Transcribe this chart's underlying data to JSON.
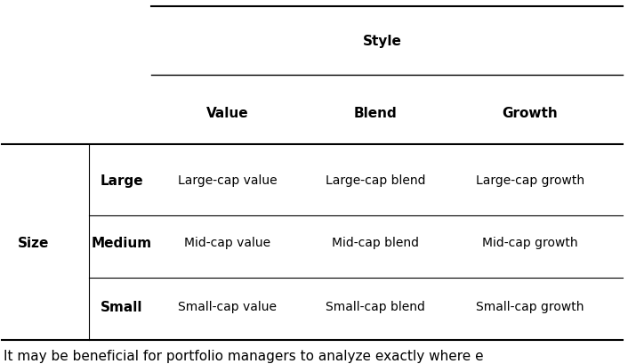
{
  "title": "Style",
  "col_headers": [
    "Value",
    "Blend",
    "Growth"
  ],
  "row_headers": [
    "Large",
    "Medium",
    "Small"
  ],
  "cells": [
    [
      "Large-cap value",
      "Large-cap blend",
      "Large-cap growth"
    ],
    [
      "Mid-cap value",
      "Mid-cap blend",
      "Mid-cap growth"
    ],
    [
      "Small-cap value",
      "Small-cap blend",
      "Small-cap growth"
    ]
  ],
  "size_label": "Size",
  "footer_text": "It may be beneficial for portfolio managers to analyze exactly where e",
  "bg_color": "#ffffff",
  "text_color": "#000000",
  "line_color": "#000000",
  "title_fontsize": 11,
  "header_fontsize": 11,
  "cell_fontsize": 10,
  "footer_fontsize": 11,
  "size_label_fontsize": 11,
  "fig_width": 7.06,
  "fig_height": 4.1,
  "dpi": 100
}
